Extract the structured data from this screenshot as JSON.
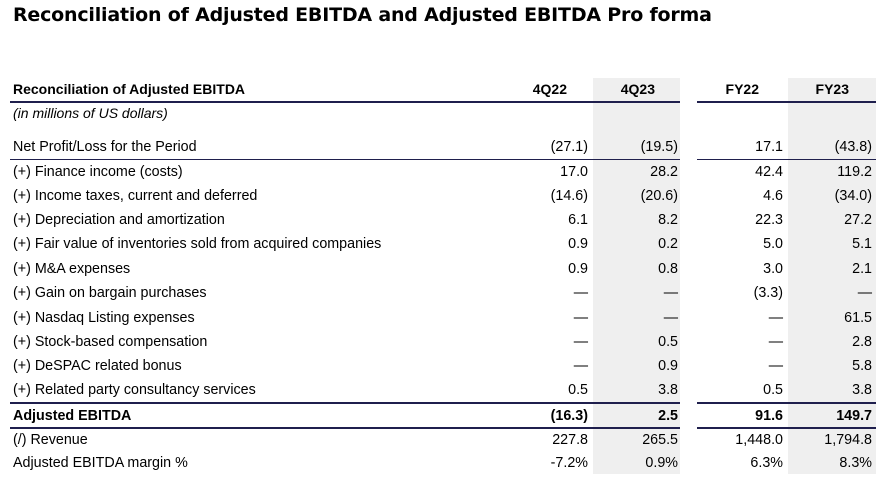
{
  "page_title": "Reconciliation of Adjusted EBITDA and Adjusted EBITDA Pro forma",
  "table": {
    "header_label": "Reconciliation of Adjusted EBITDA",
    "columns": [
      "4Q22",
      "4Q23",
      "FY22",
      "FY23"
    ],
    "subtitle": "(in millions of US dollars)",
    "rows": [
      {
        "label": "Net Profit/Loss for the Period",
        "values": [
          "(27.1)",
          "(19.5)",
          "17.1",
          "(43.8)"
        ]
      },
      {
        "label": "(+) Finance income (costs)",
        "values": [
          "17.0",
          "28.2",
          "42.4",
          "119.2"
        ]
      },
      {
        "label": "(+) Income taxes, current and deferred",
        "values": [
          "(14.6)",
          "(20.6)",
          "4.6",
          "(34.0)"
        ]
      },
      {
        "label": "(+) Depreciation and amortization",
        "values": [
          "6.1",
          "8.2",
          "22.3",
          "27.2"
        ]
      },
      {
        "label": "(+) Fair value of inventories sold from acquired companies",
        "values": [
          "0.9",
          "0.2",
          "5.0",
          "5.1"
        ]
      },
      {
        "label": "(+) M&A expenses",
        "values": [
          "0.9",
          "0.8",
          "3.0",
          "2.1"
        ]
      },
      {
        "label": "(+) Gain on bargain purchases",
        "values": [
          "—",
          "—",
          "(3.3)",
          "—"
        ]
      },
      {
        "label": "(+) Nasdaq Listing expenses",
        "values": [
          "—",
          "—",
          "—",
          "61.5"
        ]
      },
      {
        "label": "(+) Stock-based compensation",
        "values": [
          "—",
          "0.5",
          "—",
          "2.8"
        ]
      },
      {
        "label": "(+) DeSPAC related bonus",
        "values": [
          "—",
          "0.9",
          "—",
          "5.8"
        ]
      },
      {
        "label": "(+) Related party consultancy services",
        "values": [
          "0.5",
          "3.8",
          "0.5",
          "3.8"
        ]
      }
    ],
    "total_row": {
      "label": "Adjusted EBITDA",
      "values": [
        "(16.3)",
        "2.5",
        "91.6",
        "149.7"
      ]
    },
    "footer_rows": [
      {
        "label": "(/) Revenue",
        "values": [
          "227.8",
          "265.5",
          "1,448.0",
          "1,794.8"
        ]
      },
      {
        "label": "Adjusted EBITDA margin %",
        "values": [
          "-7.2%",
          "0.9%",
          "6.3%",
          "8.3%"
        ]
      }
    ]
  }
}
